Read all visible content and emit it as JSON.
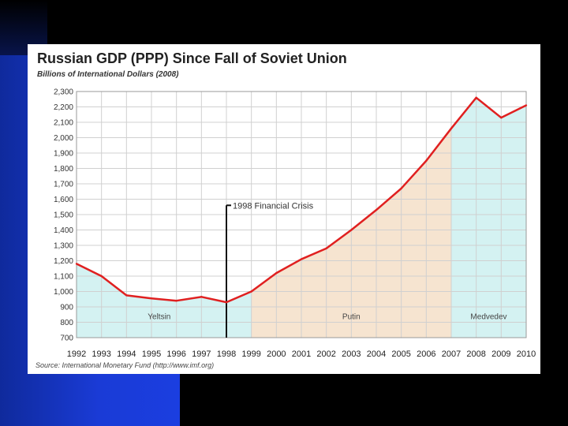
{
  "chart_data": {
    "type": "line",
    "title": "Russian GDP (PPP) Since Fall of Soviet Union",
    "subtitle": "Billions of International Dollars (2008)",
    "source": "Source: International Monetary Fund (http://www.imf.org)",
    "xlabel": "",
    "ylabel": "",
    "ylim": [
      700,
      2300
    ],
    "y_ticks": [
      700,
      800,
      900,
      1000,
      1100,
      1200,
      1300,
      1400,
      1500,
      1600,
      1700,
      1800,
      1900,
      2000,
      2100,
      2200,
      2300
    ],
    "y_tick_labels": [
      "700",
      "800",
      "900",
      "1,000",
      "1,100",
      "1,200",
      "1,300",
      "1,400",
      "1,500",
      "1,600",
      "1,700",
      "1,800",
      "1,900",
      "2,000",
      "2,100",
      "2,200",
      "2,300"
    ],
    "categories": [
      "1992",
      "1993",
      "1994",
      "1995",
      "1996",
      "1997",
      "1998",
      "1999",
      "2000",
      "2001",
      "2002",
      "2003",
      "2004",
      "2005",
      "2006",
      "2007",
      "2008",
      "2009",
      "2010"
    ],
    "x_tick_labels": [
      "1992",
      "1993",
      "1994",
      "1995",
      "1996",
      "1997",
      "1998",
      "1999",
      "2000",
      "2001",
      "2002",
      "2003",
      "2004",
      "2005",
      "2006",
      "2007",
      "2008",
      "2009",
      "2010"
    ],
    "series": [
      {
        "name": "Russian GDP (PPP)",
        "values": [
          1180,
          1100,
          975,
          955,
          940,
          965,
          930,
          1000,
          1120,
          1210,
          1280,
          1400,
          1530,
          1670,
          1850,
          2060,
          2260,
          2130,
          2210
        ]
      }
    ],
    "periods": [
      {
        "label": "Yeltsin",
        "start": "1992",
        "end": "1999",
        "color": "#d4f2f2"
      },
      {
        "label": "Putin",
        "start": "1999",
        "end": "2007",
        "color": "#f6e4d0"
      },
      {
        "label": "Medvedev",
        "start": "2007",
        "end": "2010",
        "color": "#d4f2f2"
      }
    ],
    "annotations": [
      {
        "text": "1998 Financial Crisis",
        "x": "1998"
      }
    ],
    "line_color": "#e02020",
    "grid": true
  }
}
